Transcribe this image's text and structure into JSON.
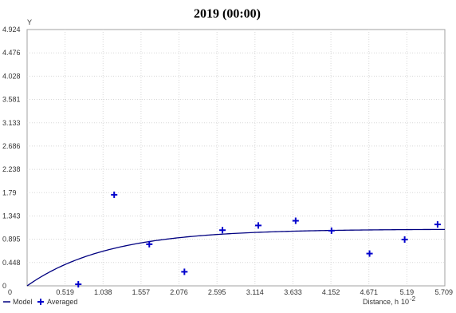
{
  "chart_data": {
    "type": "scatter",
    "title": "2019 (00:00)",
    "ylabel": "Y",
    "xlabel": "Distance, h",
    "xlabel_multiplier": "10",
    "xlabel_exponent": "-2",
    "xlim": [
      0,
      5.709
    ],
    "ylim": [
      0,
      4.924
    ],
    "x_ticks": [
      "0",
      "0.519",
      "1.038",
      "1.557",
      "2.076",
      "2.595",
      "3.114",
      "3.633",
      "4.152",
      "4.671",
      "5.19",
      "5.709"
    ],
    "y_ticks": [
      "0",
      "0.448",
      "0.895",
      "1.343",
      "1.79",
      "2.238",
      "2.686",
      "3.133",
      "3.581",
      "4.028",
      "4.476",
      "4.924"
    ],
    "grid": true,
    "legend_position": "bottom-left",
    "series": [
      {
        "name": "Model",
        "kind": "line",
        "color": "#000080",
        "model": {
          "type": "exponential",
          "nugget": 0,
          "sill": 1.09,
          "range": 3.3
        }
      },
      {
        "name": "Averaged",
        "kind": "marker",
        "marker": "plus",
        "color": "#0000cc",
        "points": [
          {
            "x": 0.7,
            "y": 0.03
          },
          {
            "x": 1.19,
            "y": 1.75
          },
          {
            "x": 1.67,
            "y": 0.8
          },
          {
            "x": 2.15,
            "y": 0.27
          },
          {
            "x": 2.67,
            "y": 1.07
          },
          {
            "x": 3.16,
            "y": 1.16
          },
          {
            "x": 3.67,
            "y": 1.25
          },
          {
            "x": 4.16,
            "y": 1.06
          },
          {
            "x": 4.68,
            "y": 0.62
          },
          {
            "x": 5.16,
            "y": 0.89
          },
          {
            "x": 5.61,
            "y": 1.18
          }
        ]
      }
    ]
  }
}
